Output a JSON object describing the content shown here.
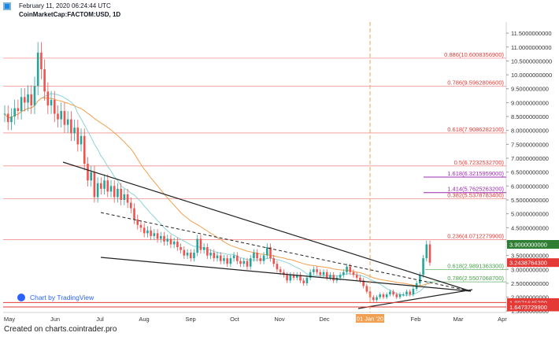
{
  "header": {
    "timestamp": "February 11, 2020 06:24:44 UTC",
    "symbol": "CoinMarketCap:FACTOM:USD, 1D"
  },
  "footer": {
    "text": "Created on charts.cointrader.pro"
  },
  "watermark": {
    "text": "Chart by TradingView"
  },
  "colors": {
    "up": "#26a69a",
    "down": "#ef5350",
    "fib_red": "#e53935",
    "fib_green": "#43a047",
    "fib_purple": "#9c27b0",
    "ma_orange": "#f0a050",
    "ma_teal": "#8fd3d8",
    "vline": "#f0a050",
    "badge_green": "#2e7d32",
    "badge_red": "#e53935"
  },
  "chart_data": {
    "type": "candlestick",
    "x_axis": {
      "labels": [
        "May",
        "Jun",
        "Jul",
        "Aug",
        "Sep",
        "Oct",
        "Nov",
        "Dec",
        "01 Jan '20",
        "Feb",
        "Mar",
        "Apr"
      ]
    },
    "y_axis": {
      "ticks": [
        "1.5000000000",
        "2.0000000000",
        "2.5000000000",
        "3.0000000000",
        "3.5000000000",
        "4.0000000000",
        "4.5000000000",
        "5.0000000000",
        "5.5000000000",
        "6.0000000000",
        "6.5000000000",
        "7.0000000000",
        "7.5000000000",
        "8.0000000000",
        "8.5000000000",
        "9.0000000000",
        "9.5000000000",
        "10.0000000000",
        "10.5000000000",
        "11.0000000000",
        "11.5000000000"
      ],
      "range": [
        1.45,
        11.9
      ]
    },
    "fib_levels": [
      {
        "label": "0.886(10.6008356900)",
        "value": 10.6008,
        "color": "red"
      },
      {
        "label": "0.786(9.5962806600)",
        "value": 9.5963,
        "color": "red"
      },
      {
        "label": "0.618(7.9086282100)",
        "value": 7.9086,
        "color": "red"
      },
      {
        "label": "0.5(6.7232532700)",
        "value": 6.7233,
        "color": "red"
      },
      {
        "label": "1.618(6.3215959000)",
        "value": 6.3216,
        "color": "purple"
      },
      {
        "label": "1.414(5.7625263200)",
        "value": 5.7625,
        "color": "purple"
      },
      {
        "label": "0.382(5.5378783400)",
        "value": 5.5379,
        "color": "red"
      },
      {
        "label": "0.236(4.0712279900)",
        "value": 4.0712,
        "color": "red"
      },
      {
        "label": "0.618(2.9891363300)",
        "value": 2.9891,
        "color": "green"
      },
      {
        "label": "0.786(2.5507068700)",
        "value": 2.5507,
        "color": "green"
      }
    ],
    "price_badges": [
      {
        "label": "3.9000000000",
        "value": 3.9,
        "color": "green"
      },
      {
        "label": "3.2438764300",
        "value": 3.2439,
        "color": "red"
      },
      {
        "label": "1.8071645300",
        "value": 1.8072,
        "color": "red"
      },
      {
        "label": "1.6473729900",
        "value": 1.6474,
        "color": "red"
      }
    ],
    "vline_label": "01 Jan '20",
    "closes": [
      8.6,
      8.3,
      8.5,
      8.8,
      8.7,
      9.2,
      9.0,
      9.3,
      8.9,
      9.6,
      10.8,
      10.2,
      9.4,
      8.9,
      9.1,
      8.6,
      8.4,
      8.7,
      8.2,
      8.4,
      7.9,
      8.1,
      7.5,
      7.8,
      6.8,
      6.2,
      6.5,
      5.6,
      6.1,
      5.9,
      6.2,
      5.8,
      6.0,
      5.6,
      5.9,
      5.5,
      5.7,
      5.4,
      5.2,
      4.8,
      4.6,
      4.5,
      4.3,
      4.4,
      4.2,
      4.3,
      4.1,
      4.2,
      4.0,
      4.1,
      3.9,
      4.0,
      3.8,
      3.7,
      3.5,
      3.6,
      3.4,
      3.6,
      4.1,
      3.7,
      3.8,
      3.5,
      3.6,
      3.4,
      3.5,
      3.3,
      3.4,
      3.2,
      3.4,
      3.5,
      3.3,
      3.2,
      3.3,
      3.1,
      3.4,
      3.6,
      3.4,
      3.3,
      3.5,
      3.8,
      3.4,
      3.2,
      3.0,
      2.9,
      2.8,
      2.6,
      2.8,
      2.7,
      2.8,
      2.6,
      2.5,
      2.7,
      2.9,
      3.0,
      2.9,
      2.8,
      2.9,
      2.7,
      2.8,
      2.6,
      2.7,
      2.8,
      2.9,
      3.1,
      2.9,
      2.8,
      2.7,
      2.6,
      2.4,
      2.2,
      2.0,
      1.9,
      2.0,
      2.1,
      2.0,
      2.1,
      2.2,
      2.1,
      2.0,
      2.1,
      2.1,
      2.2,
      2.1,
      2.3,
      2.5,
      2.8,
      3.4,
      3.9,
      3.24
    ]
  }
}
